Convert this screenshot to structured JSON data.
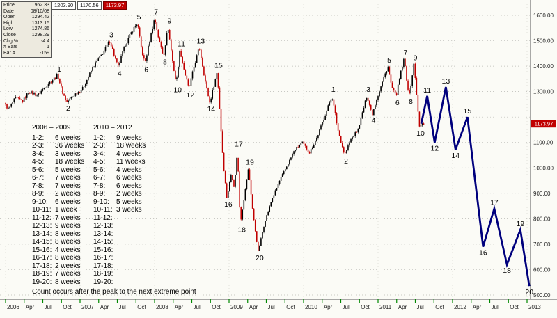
{
  "quote_panel": {
    "rows": [
      {
        "label": "Price",
        "value": "962.33"
      },
      {
        "label": "Date",
        "value": "08/10/08"
      },
      {
        "label": "Open",
        "value": "1294.42"
      },
      {
        "label": "High",
        "value": "1313.15"
      },
      {
        "label": "Low",
        "value": "1274.86"
      },
      {
        "label": "Close",
        "value": "1298.29"
      },
      {
        "label": "Chg %",
        "value": "-4.4"
      },
      {
        "label": "# Bars",
        "value": "1"
      },
      {
        "label": "Bar #",
        "value": "-159"
      }
    ],
    "ticker": [
      "1203.90",
      "1170.56",
      "1173.97"
    ]
  },
  "counts": {
    "left": {
      "title": "2006 – 2009",
      "rows": [
        {
          "pair": "1-2:",
          "weeks": "6 weeks"
        },
        {
          "pair": "2-3:",
          "weeks": "36 weeks"
        },
        {
          "pair": "3-4:",
          "weeks": "3 weeks"
        },
        {
          "pair": "4-5:",
          "weeks": "18 weeks"
        },
        {
          "pair": "5-6:",
          "weeks": "5 weeks"
        },
        {
          "pair": "6-7:",
          "weeks": "7 weeks"
        },
        {
          "pair": "7-8:",
          "weeks": "7 weeks"
        },
        {
          "pair": "8-9:",
          "weeks": "2 weeks"
        },
        {
          "pair": "9-10:",
          "weeks": "6 weeks"
        },
        {
          "pair": "10-11:",
          "weeks": "1 week"
        },
        {
          "pair": "11-12:",
          "weeks": "7 weeks"
        },
        {
          "pair": "12-13:",
          "weeks": "9 weeks"
        },
        {
          "pair": "13-14:",
          "weeks": "8 weeks"
        },
        {
          "pair": "14-15:",
          "weeks": "8 weeks"
        },
        {
          "pair": "15-16:",
          "weeks": "4 weeks"
        },
        {
          "pair": "16-17:",
          "weeks": "8 weeks"
        },
        {
          "pair": "17-18:",
          "weeks": "2 weeks"
        },
        {
          "pair": "18-19:",
          "weeks": "7 weeks"
        },
        {
          "pair": "19-20:",
          "weeks": "8 weeks"
        }
      ]
    },
    "right": {
      "title": "2010 – 2012",
      "rows": [
        {
          "pair": "1-2:",
          "weeks": "9 weeks"
        },
        {
          "pair": "2-3:",
          "weeks": "18 weeks"
        },
        {
          "pair": "3-4:",
          "weeks": "4 weeks"
        },
        {
          "pair": "4-5:",
          "weeks": "11 weeks"
        },
        {
          "pair": "5-6:",
          "weeks": "4 weeks"
        },
        {
          "pair": "6-7:",
          "weeks": "6 weeks"
        },
        {
          "pair": "7-8:",
          "weeks": "6 weeks"
        },
        {
          "pair": "8-9:",
          "weeks": "2 weeks"
        },
        {
          "pair": "9-10:",
          "weeks": "5 weeks"
        },
        {
          "pair": "10-11:",
          "weeks": "3 weeks"
        },
        {
          "pair": "11-12:",
          "weeks": ""
        },
        {
          "pair": "12-13:",
          "weeks": ""
        },
        {
          "pair": "13-14:",
          "weeks": ""
        },
        {
          "pair": "14-15:",
          "weeks": ""
        },
        {
          "pair": "15-16:",
          "weeks": ""
        },
        {
          "pair": "16-17:",
          "weeks": ""
        },
        {
          "pair": "17-18:",
          "weeks": ""
        },
        {
          "pair": "18-19:",
          "weeks": ""
        },
        {
          "pair": "19-20:",
          "weeks": ""
        }
      ]
    },
    "note": "Count occurs after the peak to the next extreme point"
  },
  "chart_data": {
    "type": "candlestick",
    "title": "",
    "xlabel": "",
    "ylabel": "",
    "legend": "none",
    "grid": "dotted",
    "last_candle_t": 2011.62,
    "colors": {
      "up": "#000000",
      "down": "#c00000"
    },
    "y_axis": {
      "min": 500,
      "max": 1600,
      "step": 100,
      "labels": [
        {
          "v": 1600,
          "label": "1600.00"
        },
        {
          "v": 1500,
          "label": "1500.00"
        },
        {
          "v": 1400,
          "label": "1400.00"
        },
        {
          "v": 1300,
          "label": "1300.00"
        },
        {
          "v": 1100,
          "label": "1100.00"
        },
        {
          "v": 1000,
          "label": "1000.00"
        },
        {
          "v": 900,
          "label": "900.00"
        },
        {
          "v": 800,
          "label": "800.00"
        },
        {
          "v": 700,
          "label": "700.00"
        },
        {
          "v": 600,
          "label": "600.00"
        },
        {
          "v": 500,
          "label": "500.00"
        }
      ]
    },
    "current_price": {
      "value": 1173.97,
      "label": "1173.97",
      "bg": "#c00000"
    },
    "x_axis": {
      "ticks": [
        {
          "t": 2006.0,
          "l": "2006"
        },
        {
          "t": 2006.25,
          "l": "Apr"
        },
        {
          "t": 2006.5,
          "l": "Jul"
        },
        {
          "t": 2006.75,
          "l": "Oct"
        },
        {
          "t": 2007.0,
          "l": "2007"
        },
        {
          "t": 2007.25,
          "l": "Apr"
        },
        {
          "t": 2007.5,
          "l": "Jul"
        },
        {
          "t": 2007.75,
          "l": "Oct"
        },
        {
          "t": 2008.0,
          "l": "2008"
        },
        {
          "t": 2008.25,
          "l": "Apr"
        },
        {
          "t": 2008.5,
          "l": "Jul"
        },
        {
          "t": 2008.75,
          "l": "Oct"
        },
        {
          "t": 2009.0,
          "l": "2009"
        },
        {
          "t": 2009.25,
          "l": "Apr"
        },
        {
          "t": 2009.5,
          "l": "Jul"
        },
        {
          "t": 2009.75,
          "l": "Oct"
        },
        {
          "t": 2010.0,
          "l": "2010"
        },
        {
          "t": 2010.25,
          "l": "Apr"
        },
        {
          "t": 2010.5,
          "l": "Jul"
        },
        {
          "t": 2010.75,
          "l": "Oct"
        },
        {
          "t": 2011.0,
          "l": "2011"
        },
        {
          "t": 2011.25,
          "l": "Apr"
        },
        {
          "t": 2011.5,
          "l": "Jul"
        },
        {
          "t": 2011.75,
          "l": "Oct"
        },
        {
          "t": 2012.0,
          "l": "2012"
        },
        {
          "t": 2012.25,
          "l": "Apr"
        },
        {
          "t": 2012.5,
          "l": "Jul"
        },
        {
          "t": 2012.75,
          "l": "Oct"
        },
        {
          "t": 2013.0,
          "l": "2013"
        }
      ]
    },
    "price_path": [
      [
        2006.0,
        1255
      ],
      [
        2006.06,
        1230
      ],
      [
        2006.15,
        1275
      ],
      [
        2006.25,
        1262
      ],
      [
        2006.33,
        1300
      ],
      [
        2006.45,
        1285
      ],
      [
        2006.55,
        1320
      ],
      [
        2006.72,
        1365
      ],
      [
        2006.78,
        1300
      ],
      [
        2006.84,
        1258
      ],
      [
        2006.95,
        1290
      ],
      [
        2007.05,
        1310
      ],
      [
        2007.2,
        1400
      ],
      [
        2007.32,
        1450
      ],
      [
        2007.42,
        1500
      ],
      [
        2007.48,
        1440
      ],
      [
        2007.53,
        1395
      ],
      [
        2007.62,
        1480
      ],
      [
        2007.72,
        1540
      ],
      [
        2007.79,
        1570
      ],
      [
        2007.84,
        1470
      ],
      [
        2007.89,
        1410
      ],
      [
        2007.96,
        1510
      ],
      [
        2008.02,
        1590
      ],
      [
        2008.08,
        1500
      ],
      [
        2008.14,
        1440
      ],
      [
        2008.2,
        1555
      ],
      [
        2008.26,
        1420
      ],
      [
        2008.31,
        1330
      ],
      [
        2008.36,
        1465
      ],
      [
        2008.42,
        1380
      ],
      [
        2008.48,
        1310
      ],
      [
        2008.55,
        1400
      ],
      [
        2008.62,
        1475
      ],
      [
        2008.7,
        1340
      ],
      [
        2008.76,
        1255
      ],
      [
        2008.86,
        1380
      ],
      [
        2008.9,
        1200
      ],
      [
        2008.94,
        1020
      ],
      [
        2008.99,
        880
      ],
      [
        2009.05,
        980
      ],
      [
        2009.09,
        920
      ],
      [
        2009.13,
        1070
      ],
      [
        2009.17,
        780
      ],
      [
        2009.23,
        900
      ],
      [
        2009.28,
        1000
      ],
      [
        2009.34,
        820
      ],
      [
        2009.41,
        670
      ],
      [
        2009.5,
        790
      ],
      [
        2009.6,
        880
      ],
      [
        2009.7,
        950
      ],
      [
        2009.8,
        1010
      ],
      [
        2009.9,
        1070
      ],
      [
        2010.0,
        1100
      ],
      [
        2010.1,
        1060
      ],
      [
        2010.2,
        1120
      ],
      [
        2010.3,
        1200
      ],
      [
        2010.4,
        1285
      ],
      [
        2010.48,
        1150
      ],
      [
        2010.57,
        1050
      ],
      [
        2010.65,
        1110
      ],
      [
        2010.75,
        1150
      ],
      [
        2010.87,
        1285
      ],
      [
        2010.94,
        1210
      ],
      [
        2011.0,
        1270
      ],
      [
        2011.08,
        1340
      ],
      [
        2011.15,
        1400
      ],
      [
        2011.2,
        1320
      ],
      [
        2011.26,
        1280
      ],
      [
        2011.32,
        1370
      ],
      [
        2011.37,
        1430
      ],
      [
        2011.41,
        1330
      ],
      [
        2011.44,
        1285
      ],
      [
        2011.5,
        1410
      ],
      [
        2011.54,
        1280
      ],
      [
        2011.57,
        1160
      ],
      [
        2011.62,
        1174
      ]
    ],
    "waves_2006_2009": [
      {
        "n": "1",
        "t": 2006.72,
        "p": 1365,
        "dir": "high"
      },
      {
        "n": "2",
        "t": 2006.84,
        "p": 1258,
        "dir": "low"
      },
      {
        "n": "3",
        "t": 2007.42,
        "p": 1500,
        "dir": "high"
      },
      {
        "n": "4",
        "t": 2007.53,
        "p": 1395,
        "dir": "low"
      },
      {
        "n": "5",
        "t": 2007.79,
        "p": 1570,
        "dir": "high"
      },
      {
        "n": "6",
        "t": 2007.89,
        "p": 1410,
        "dir": "low"
      },
      {
        "n": "7",
        "t": 2008.02,
        "p": 1590,
        "dir": "high"
      },
      {
        "n": "8",
        "t": 2008.14,
        "p": 1440,
        "dir": "low"
      },
      {
        "n": "9",
        "t": 2008.2,
        "p": 1555,
        "dir": "high"
      },
      {
        "n": "10",
        "t": 2008.31,
        "p": 1330,
        "dir": "low"
      },
      {
        "n": "11",
        "t": 2008.36,
        "p": 1465,
        "dir": "high"
      },
      {
        "n": "12",
        "t": 2008.48,
        "p": 1310,
        "dir": "low"
      },
      {
        "n": "13",
        "t": 2008.62,
        "p": 1475,
        "dir": "high"
      },
      {
        "n": "14",
        "t": 2008.76,
        "p": 1255,
        "dir": "low"
      },
      {
        "n": "15",
        "t": 2008.86,
        "p": 1380,
        "dir": "high"
      },
      {
        "n": "16",
        "t": 2008.99,
        "p": 880,
        "dir": "low"
      },
      {
        "n": "17",
        "t": 2009.13,
        "p": 1070,
        "dir": "high"
      },
      {
        "n": "18",
        "t": 2009.17,
        "p": 780,
        "dir": "low"
      },
      {
        "n": "19",
        "t": 2009.28,
        "p": 1000,
        "dir": "high"
      },
      {
        "n": "20",
        "t": 2009.41,
        "p": 670,
        "dir": "low"
      }
    ],
    "waves_2010_2012": [
      {
        "n": "1",
        "t": 2010.4,
        "p": 1285,
        "dir": "high"
      },
      {
        "n": "2",
        "t": 2010.57,
        "p": 1050,
        "dir": "low"
      },
      {
        "n": "3",
        "t": 2010.87,
        "p": 1285,
        "dir": "high"
      },
      {
        "n": "4",
        "t": 2010.94,
        "p": 1210,
        "dir": "low"
      },
      {
        "n": "5",
        "t": 2011.15,
        "p": 1400,
        "dir": "high"
      },
      {
        "n": "6",
        "t": 2011.26,
        "p": 1280,
        "dir": "low"
      },
      {
        "n": "7",
        "t": 2011.37,
        "p": 1430,
        "dir": "high"
      },
      {
        "n": "8",
        "t": 2011.44,
        "p": 1285,
        "dir": "low"
      },
      {
        "n": "9",
        "t": 2011.5,
        "p": 1410,
        "dir": "high"
      },
      {
        "n": "10",
        "t": 2011.57,
        "p": 1160,
        "dir": "low"
      }
    ],
    "projection": {
      "color": "#00007d",
      "width": 2.8,
      "points": [
        {
          "n": "",
          "t": 2011.58,
          "p": 1174,
          "dir": "low"
        },
        {
          "n": "11",
          "t": 2011.66,
          "p": 1283,
          "dir": "high"
        },
        {
          "n": "12",
          "t": 2011.76,
          "p": 1100,
          "dir": "low"
        },
        {
          "n": "13",
          "t": 2011.91,
          "p": 1318,
          "dir": "high"
        },
        {
          "n": "14",
          "t": 2012.04,
          "p": 1072,
          "dir": "low"
        },
        {
          "n": "15",
          "t": 2012.2,
          "p": 1200,
          "dir": "high"
        },
        {
          "n": "16",
          "t": 2012.41,
          "p": 690,
          "dir": "low"
        },
        {
          "n": "17",
          "t": 2012.56,
          "p": 840,
          "dir": "high"
        },
        {
          "n": "18",
          "t": 2012.73,
          "p": 620,
          "dir": "low"
        },
        {
          "n": "19",
          "t": 2012.91,
          "p": 757,
          "dir": "high"
        },
        {
          "n": "20",
          "t": 2013.03,
          "p": 535,
          "dir": "low"
        }
      ]
    }
  }
}
